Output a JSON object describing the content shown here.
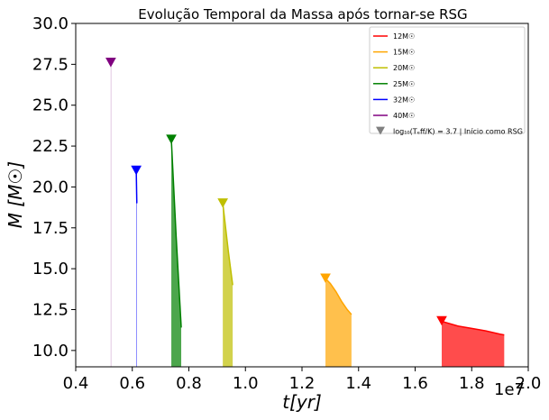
{
  "chart_data": {
    "type": "line",
    "title": "Evolução Temporal da Massa após tornar-se RSG",
    "xlabel": "t[yr]",
    "ylabel": "M [M☉]",
    "x_offset_label": "1e7",
    "xlim": [
      0.4,
      2.0
    ],
    "ylim": [
      9.0,
      30.0
    ],
    "xticks": [
      0.4,
      0.6,
      0.8,
      1.0,
      1.2,
      1.4,
      1.6,
      1.8,
      2.0
    ],
    "xtick_labels": [
      "0.4",
      "0.6",
      "0.8",
      "1.0",
      "1.2",
      "1.4",
      "1.6",
      "1.8",
      "2.0"
    ],
    "yticks": [
      10.0,
      12.5,
      15.0,
      17.5,
      20.0,
      22.5,
      25.0,
      27.5,
      30.0
    ],
    "ytick_labels": [
      "10.0",
      "12.5",
      "15.0",
      "17.5",
      "20.0",
      "22.5",
      "25.0",
      "27.5",
      "30.0"
    ],
    "baseline": 9.0,
    "legend_position": "top-right",
    "series": [
      {
        "name": "12M☉",
        "color": "#ff0000",
        "x": [
          1.694,
          1.7,
          1.75,
          1.8,
          1.85,
          1.9,
          1.915
        ],
        "y": [
          11.8,
          11.75,
          11.5,
          11.35,
          11.2,
          11.0,
          10.95
        ]
      },
      {
        "name": "15M☉",
        "color": "#ffa500",
        "x": [
          1.283,
          1.3,
          1.32,
          1.34,
          1.36,
          1.375
        ],
        "y": [
          14.4,
          14.1,
          13.6,
          13.0,
          12.5,
          12.2
        ]
      },
      {
        "name": "20M☉",
        "color": "#bfbf00",
        "x": [
          0.92,
          0.94,
          0.955
        ],
        "y": [
          19.0,
          16.0,
          14.0
        ]
      },
      {
        "name": "25M☉",
        "color": "#008000",
        "x": [
          0.738,
          0.755,
          0.773
        ],
        "y": [
          22.9,
          17.0,
          11.4
        ]
      },
      {
        "name": "32M☉",
        "color": "#0000ff",
        "x": [
          0.614,
          0.616
        ],
        "y": [
          21.0,
          19.0
        ]
      },
      {
        "name": "40M☉",
        "color": "#800080",
        "x": [
          0.524,
          0.525
        ],
        "y": [
          27.6,
          27.5
        ]
      }
    ],
    "marker_legend": {
      "label": "log₁₀(Tₑff/K) = 3.7 | Início como RSG",
      "color": "#808080"
    }
  }
}
